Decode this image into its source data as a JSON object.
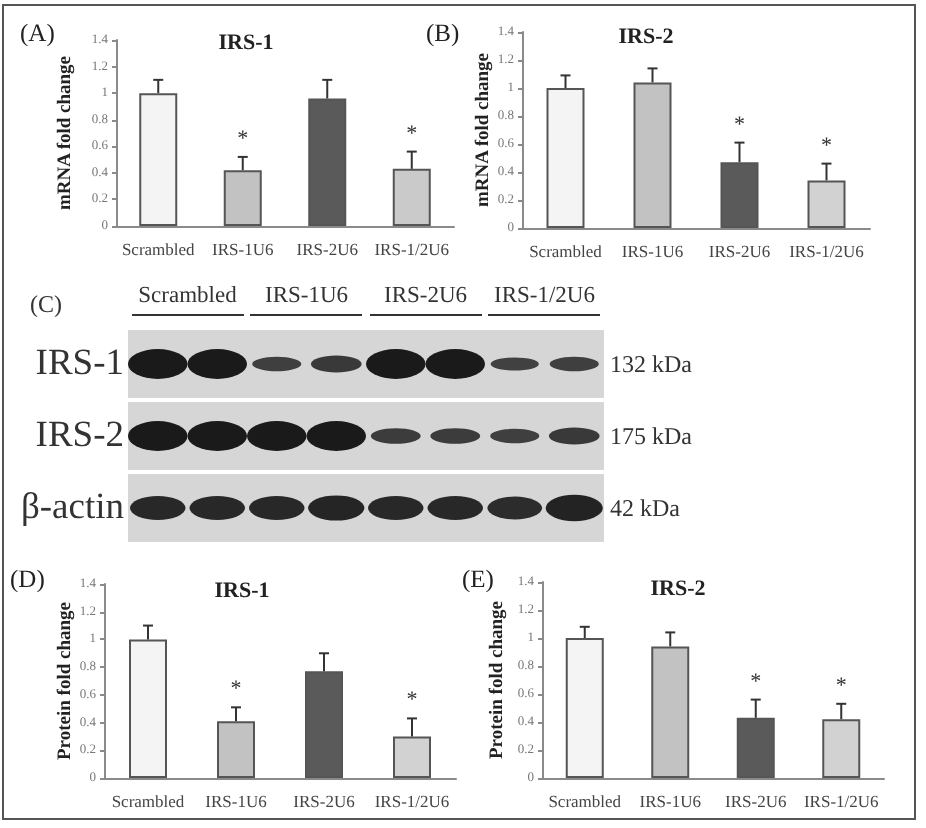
{
  "chart_data": [
    {
      "type": "bar",
      "title": "IRS-1",
      "ylabel": "mRNA fold change",
      "annotations": [
        "(A)",
        {
          "text": "*",
          "x": "IRS-1U6",
          "y": 0.52
        },
        {
          "text": "*",
          "x": "IRS-1/2U6",
          "y": 0.56
        }
      ],
      "categories": [
        "Scrambled",
        "IRS-1U6",
        "IRS-2U6",
        "IRS-1/2U6"
      ],
      "values": [
        1.0,
        0.42,
        0.96,
        0.43
      ],
      "errors": [
        [
          1.0,
          1.1
        ],
        [
          0.42,
          0.52
        ],
        [
          0.96,
          1.1
        ],
        [
          0.43,
          0.56
        ]
      ],
      "colors": [
        "#f4f4f4",
        "#c2c2c2",
        "#5a5a5a",
        "#cacaca"
      ],
      "ylim": [
        0,
        1.4
      ],
      "yticks": [
        0,
        0.2,
        0.4,
        0.6,
        0.8,
        1,
        1.2,
        1.4
      ]
    },
    {
      "type": "bar",
      "title": "IRS-2",
      "ylabel": "mRNA fold change",
      "annotations": [
        "(B)",
        {
          "text": "*",
          "x": "IRS-2U6",
          "y": 0.61
        },
        {
          "text": "*",
          "x": "IRS-1/2U6",
          "y": 0.46
        }
      ],
      "categories": [
        "Scrambled",
        "IRS-1U6",
        "IRS-2U6",
        "IRS-1/2U6"
      ],
      "values": [
        1.0,
        1.04,
        0.47,
        0.34
      ],
      "errors": [
        [
          1.0,
          1.09
        ],
        [
          1.04,
          1.14
        ],
        [
          0.47,
          0.61
        ],
        [
          0.34,
          0.46
        ]
      ],
      "colors": [
        "#f4f4f4",
        "#c2c2c2",
        "#5a5a5a",
        "#d2d2d2"
      ],
      "ylim": [
        0,
        1.4
      ],
      "yticks": [
        0,
        0.2,
        0.4,
        0.6,
        0.8,
        1,
        1.2,
        1.4
      ]
    },
    {
      "type": "other",
      "annotations": [
        "(C)"
      ],
      "categories": [
        "Scrambled",
        "IRS-1U6",
        "IRS-2U6",
        "IRS-1/2U6"
      ],
      "y_categories": [
        "IRS-1",
        "IRS-2",
        "β-actin"
      ],
      "y2_categories": [
        "132 kDa",
        "175 kDa",
        "42 kDa"
      ]
    },
    {
      "type": "bar",
      "title": "IRS-1",
      "ylabel": "Protein fold change",
      "annotations": [
        "(D)",
        {
          "text": "*",
          "x": "IRS-1U6",
          "y": 0.51
        },
        {
          "text": "*",
          "x": "IRS-1/2U6",
          "y": 0.43
        }
      ],
      "categories": [
        "Scrambled",
        "IRS-1U6",
        "IRS-2U6",
        "IRS-1/2U6"
      ],
      "values": [
        1.0,
        0.41,
        0.77,
        0.3
      ],
      "errors": [
        [
          1.0,
          1.1
        ],
        [
          0.41,
          0.51
        ],
        [
          0.77,
          0.9
        ],
        [
          0.3,
          0.43
        ]
      ],
      "colors": [
        "#f4f4f4",
        "#c2c2c2",
        "#5a5a5a",
        "#d2d2d2"
      ],
      "ylim": [
        0,
        1.4
      ],
      "yticks": [
        0,
        0.2,
        0.4,
        0.6,
        0.8,
        1,
        1.2,
        1.4
      ]
    },
    {
      "type": "bar",
      "title": "IRS-2",
      "ylabel": "Protein fold change",
      "annotations": [
        "(E)",
        {
          "text": "*",
          "x": "IRS-2U6",
          "y": 0.56
        },
        {
          "text": "*",
          "x": "IRS-1/2U6",
          "y": 0.53
        }
      ],
      "categories": [
        "Scrambled",
        "IRS-1U6",
        "IRS-2U6",
        "IRS-1/2U6"
      ],
      "values": [
        1.0,
        0.94,
        0.43,
        0.42
      ],
      "errors": [
        [
          1.0,
          1.08
        ],
        [
          0.94,
          1.04
        ],
        [
          0.43,
          0.56
        ],
        [
          0.42,
          0.53
        ]
      ],
      "colors": [
        "#f4f4f4",
        "#c2c2c2",
        "#5a5a5a",
        "#d2d2d2"
      ],
      "ylim": [
        0,
        1.4
      ],
      "yticks": [
        0,
        0.2,
        0.4,
        0.6,
        0.8,
        1,
        1.2,
        1.4
      ]
    }
  ]
}
